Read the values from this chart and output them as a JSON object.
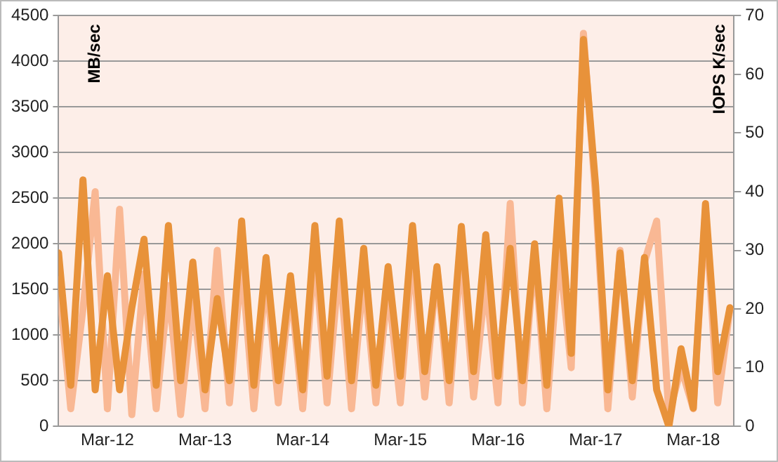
{
  "chart_data": {
    "type": "line",
    "ylabel": "MB/sec",
    "y2label": "IOPS K/sec",
    "grid": "y",
    "legend": false,
    "marker": "none",
    "line_style": "solid",
    "x": [
      "--03-11T12:00",
      "--03-11T15:00",
      "--03-11T18:00",
      "--03-11T21:00",
      "--03-12T00:00",
      "--03-12T03:00",
      "--03-12T06:00",
      "--03-12T09:00",
      "--03-12T12:00",
      "--03-12T15:00",
      "--03-12T18:00",
      "--03-12T21:00",
      "--03-13T00:00",
      "--03-13T03:00",
      "--03-13T06:00",
      "--03-13T09:00",
      "--03-13T12:00",
      "--03-13T15:00",
      "--03-13T18:00",
      "--03-13T21:00",
      "--03-14T00:00",
      "--03-14T03:00",
      "--03-14T06:00",
      "--03-14T09:00",
      "--03-14T12:00",
      "--03-14T15:00",
      "--03-14T18:00",
      "--03-14T21:00",
      "--03-15T00:00",
      "--03-15T03:00",
      "--03-15T06:00",
      "--03-15T09:00",
      "--03-15T12:00",
      "--03-15T15:00",
      "--03-15T18:00",
      "--03-15T21:00",
      "--03-16T00:00",
      "--03-16T03:00",
      "--03-16T06:00",
      "--03-16T09:00",
      "--03-16T12:00",
      "--03-16T15:00",
      "--03-16T18:00",
      "--03-16T21:00",
      "--03-17T00:00",
      "--03-17T03:00",
      "--03-17T06:00",
      "--03-17T09:00",
      "--03-17T12:00",
      "--03-17T15:00",
      "--03-17T18:00",
      "--03-17T21:00",
      "--03-18T00:00",
      "--03-18T03:00",
      "--03-18T06:00",
      "--03-18T09:00"
    ],
    "xlim": [
      "--03-11T12:00",
      "--03-18T10:00"
    ],
    "xticks": [
      {
        "value": "--03-12",
        "label": "Mar-12"
      },
      {
        "value": "--03-13",
        "label": "Mar-13"
      },
      {
        "value": "--03-14",
        "label": "Mar-14"
      },
      {
        "value": "--03-15",
        "label": "Mar-15"
      },
      {
        "value": "--03-16",
        "label": "Mar-16"
      },
      {
        "value": "--03-17",
        "label": "Mar-17"
      },
      {
        "value": "--03-18",
        "label": "Mar-18"
      }
    ],
    "ylim": [
      0,
      4500
    ],
    "yticks": [
      0,
      500,
      1000,
      1500,
      2000,
      2500,
      3000,
      3500,
      4000,
      4500
    ],
    "y2lim": [
      0,
      70
    ],
    "y2ticks": [
      0,
      10,
      20,
      30,
      40,
      50,
      60,
      70
    ],
    "series": [
      {
        "color": "#f9b894",
        "axis": "y2",
        "values": [
          25,
          3,
          20,
          40,
          3,
          37,
          2,
          26,
          3,
          24,
          2,
          22,
          3,
          30,
          4,
          28,
          3,
          26,
          4,
          24,
          3,
          30,
          4,
          28,
          3,
          26,
          4,
          24,
          4,
          30,
          5,
          27,
          4,
          30,
          5,
          25,
          4,
          38,
          4,
          30,
          3,
          30,
          10,
          67,
          39,
          3,
          30,
          5,
          28,
          35,
          2,
          10,
          3,
          37,
          4,
          20
        ]
      },
      {
        "color": "#e8923a",
        "values": [
          1900,
          450,
          2700,
          400,
          1650,
          400,
          1300,
          2050,
          450,
          2200,
          500,
          1800,
          400,
          1400,
          500,
          2250,
          450,
          1850,
          500,
          1650,
          400,
          2200,
          550,
          2250,
          500,
          1950,
          450,
          1750,
          550,
          2200,
          600,
          1750,
          500,
          2190,
          600,
          2100,
          550,
          1950,
          500,
          2000,
          450,
          2500,
          800,
          4240,
          2640,
          400,
          1900,
          500,
          1850,
          400,
          0,
          850,
          200,
          2440,
          600,
          1300
        ]
      }
    ]
  }
}
